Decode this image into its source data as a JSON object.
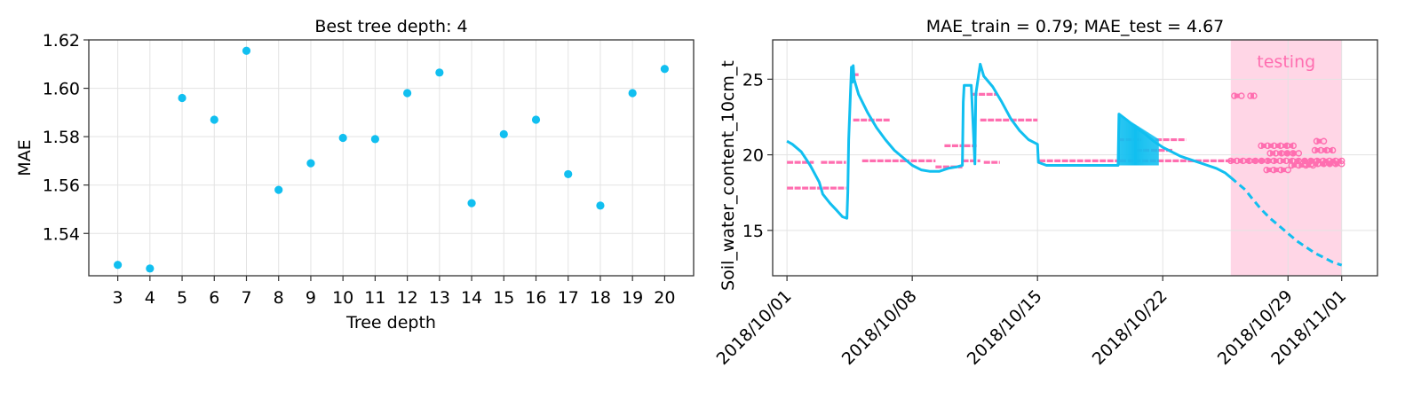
{
  "chart_data": [
    {
      "type": "scatter",
      "title": "Best tree depth: 4",
      "xlabel": "Tree depth",
      "ylabel": "MAE",
      "x": [
        3,
        4,
        5,
        6,
        7,
        8,
        9,
        10,
        11,
        12,
        13,
        14,
        15,
        16,
        17,
        18,
        19,
        20
      ],
      "y": [
        1.527,
        1.5255,
        1.596,
        1.587,
        1.6155,
        1.558,
        1.569,
        1.5795,
        1.579,
        1.598,
        1.6065,
        1.5525,
        1.581,
        1.587,
        1.5645,
        1.5515,
        1.598,
        1.608
      ],
      "xlim": [
        2.1,
        20.9
      ],
      "ylim": [
        1.5225,
        1.62
      ],
      "yticks": [
        1.54,
        1.56,
        1.58,
        1.6,
        1.62
      ],
      "yticklabels": [
        "1.54",
        "1.56",
        "1.58",
        "1.60",
        "1.62"
      ],
      "xticks": [
        3,
        4,
        5,
        6,
        7,
        8,
        9,
        10,
        11,
        12,
        13,
        14,
        15,
        16,
        17,
        18,
        19,
        20
      ],
      "xticklabels": [
        "3",
        "4",
        "5",
        "6",
        "7",
        "8",
        "9",
        "10",
        "11",
        "12",
        "13",
        "14",
        "15",
        "16",
        "17",
        "18",
        "19",
        "20"
      ],
      "grid": true,
      "color": "#11bff0"
    },
    {
      "type": "line",
      "title": "MAE_train = 0.79; MAE_test = 4.67",
      "xlabel": "",
      "ylabel": "Soil_water_content_10cm_t",
      "x_unit": "days since 2018/10/01",
      "xlim": [
        -0.8,
        33.0
      ],
      "ylim": [
        12.0,
        27.6
      ],
      "xticks": [
        0,
        7,
        14,
        21,
        28,
        31
      ],
      "xticklabels": [
        "2018/10/01",
        "2018/10/08",
        "2018/10/15",
        "2018/10/22",
        "2018/10/29",
        "2018/11/01"
      ],
      "yticks": [
        15,
        20,
        25
      ],
      "yticklabels": [
        "15",
        "20",
        "25"
      ],
      "grid": true,
      "testing_region": {
        "x_start": 24.8,
        "x_end": 31.0,
        "label": "testing",
        "color": "#ffd6e6",
        "label_color": "#ff6eb0"
      },
      "series": [
        {
          "name": "",
          "role": "observed-train",
          "color": "#11bff0",
          "x": [
            0,
            0.3,
            0.8,
            1.3,
            1.8,
            2.0,
            2.4,
            2.8,
            3.1,
            3.35,
            3.4,
            3.45,
            3.6,
            3.65,
            3.7,
            3.75,
            4.0,
            4.5,
            5.0,
            5.5,
            6.0,
            6.5,
            7.0,
            7.5,
            8.0,
            8.5,
            9.0,
            9.5,
            9.8,
            9.85,
            9.9,
            10.3,
            10.5,
            10.55,
            10.8,
            11.0,
            11.5,
            12.0,
            12.5,
            13.0,
            13.5,
            14.0,
            14.05,
            14.5,
            15.0,
            16.0,
            17.0,
            18.0,
            18.5,
            18.55,
            19.0,
            19.5,
            20.0,
            20.5,
            21.0,
            21.5,
            22.0,
            22.5,
            23.0,
            23.5,
            24.0,
            24.5,
            24.8
          ],
          "y": [
            20.9,
            20.7,
            20.2,
            19.3,
            18.2,
            17.4,
            16.8,
            16.3,
            15.9,
            15.8,
            17.5,
            21.0,
            25.8,
            24.8,
            25.9,
            25.0,
            24.0,
            22.8,
            21.8,
            21.0,
            20.3,
            19.8,
            19.3,
            19.0,
            18.9,
            18.9,
            19.1,
            19.2,
            19.3,
            23.5,
            24.6,
            24.6,
            19.4,
            24.0,
            26.0,
            25.2,
            24.5,
            23.5,
            22.4,
            21.6,
            21.0,
            20.7,
            19.5,
            19.3,
            19.3,
            19.3,
            19.3,
            19.3,
            19.3,
            22.7,
            22.3,
            21.8,
            21.4,
            20.9,
            20.5,
            20.2,
            19.9,
            19.7,
            19.5,
            19.3,
            19.1,
            18.8,
            18.5
          ]
        },
        {
          "name": "",
          "role": "observed-test",
          "color": "#11bff0",
          "dashed": true,
          "x": [
            24.8,
            25.2,
            25.6,
            26.0,
            26.5,
            27.0,
            27.5,
            28.0,
            28.5,
            29.0,
            29.5,
            30.0,
            30.5,
            31.0
          ],
          "y": [
            18.5,
            18.1,
            17.7,
            17.1,
            16.4,
            15.8,
            15.3,
            14.8,
            14.3,
            13.9,
            13.5,
            13.2,
            12.9,
            12.7
          ]
        },
        {
          "name": "",
          "role": "predicted-train",
          "color": "#ff6eb0",
          "segments": [
            {
              "x0": 0.0,
              "x1": 1.9,
              "y": 17.8
            },
            {
              "x0": 0.0,
              "x1": 1.5,
              "y": 19.5
            },
            {
              "x0": 2.0,
              "x1": 3.3,
              "y": 17.8
            },
            {
              "x0": 1.9,
              "x1": 3.3,
              "y": 19.5
            },
            {
              "x0": 3.7,
              "x1": 5.8,
              "y": 22.3
            },
            {
              "x0": 3.7,
              "x1": 4.0,
              "y": 25.3
            },
            {
              "x0": 4.2,
              "x1": 6.5,
              "y": 19.6
            },
            {
              "x0": 6.5,
              "x1": 8.3,
              "y": 19.6
            },
            {
              "x0": 8.3,
              "x1": 9.8,
              "y": 19.2
            },
            {
              "x0": 8.8,
              "x1": 9.8,
              "y": 20.6
            },
            {
              "x0": 9.9,
              "x1": 10.6,
              "y": 20.6
            },
            {
              "x0": 10.3,
              "x1": 11.7,
              "y": 24.0
            },
            {
              "x0": 10.8,
              "x1": 14.0,
              "y": 22.3
            },
            {
              "x0": 14.1,
              "x1": 18.5,
              "y": 19.6
            },
            {
              "x0": 18.5,
              "x1": 19.8,
              "y": 21.0
            },
            {
              "x0": 18.6,
              "x1": 24.8,
              "y": 19.6
            },
            {
              "x0": 19.5,
              "x1": 21.6,
              "y": 20.3
            },
            {
              "x0": 20.6,
              "x1": 22.3,
              "y": 21.0
            },
            {
              "x0": 9.8,
              "x1": 10.8,
              "y": 19.6
            },
            {
              "x0": 11.0,
              "x1": 11.9,
              "y": 19.5
            }
          ]
        },
        {
          "name": "",
          "role": "predicted-test",
          "color": "#ff6eb0",
          "markers": "open-circles",
          "segments": [
            {
              "x0": 24.8,
              "x1": 31.0,
              "y": 19.6
            },
            {
              "x0": 25.0,
              "x1": 25.4,
              "y": 23.9
            },
            {
              "x0": 25.9,
              "x1": 26.1,
              "y": 23.9
            },
            {
              "x0": 26.5,
              "x1": 28.3,
              "y": 20.6
            },
            {
              "x0": 26.8,
              "x1": 28.0,
              "y": 19.0
            },
            {
              "x0": 27.0,
              "x1": 28.6,
              "y": 20.1
            },
            {
              "x0": 28.2,
              "x1": 29.4,
              "y": 19.3
            },
            {
              "x0": 29.6,
              "x1": 30.0,
              "y": 20.9
            },
            {
              "x0": 29.5,
              "x1": 30.5,
              "y": 20.3
            },
            {
              "x0": 29.0,
              "x1": 31.0,
              "y": 19.4
            }
          ]
        }
      ]
    }
  ]
}
